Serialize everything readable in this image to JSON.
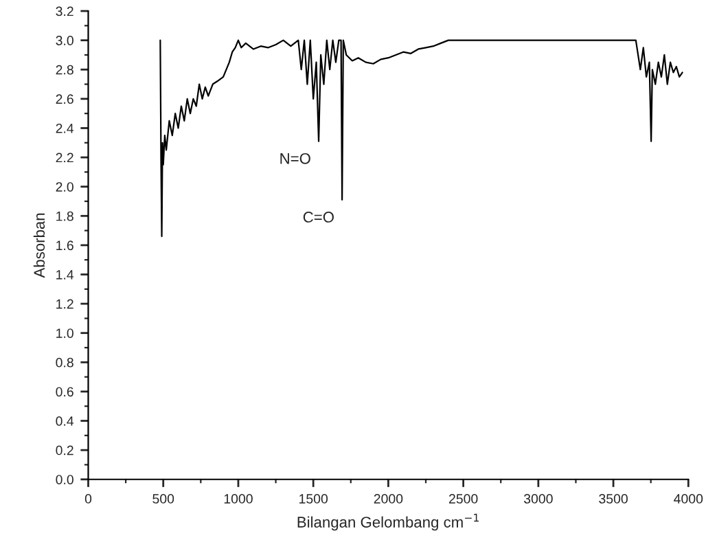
{
  "chart_data": {
    "type": "line",
    "xlabel": "Bilangan Gelombang cm$^{−1}$",
    "ylabel": "Absorban",
    "xlim": [
      0,
      4000
    ],
    "ylim": [
      0,
      3.2
    ],
    "xticks": [
      0,
      500,
      1000,
      1500,
      2000,
      2500,
      3000,
      3500,
      4000
    ],
    "yticks": [
      {
        "value": 0,
        "label": "0.0"
      },
      0.2,
      0.4,
      0.6,
      0.8,
      {
        "value": 1,
        "label": "1.0"
      },
      1.2,
      1.4,
      1.6,
      1.8,
      {
        "value": 2,
        "label": "2.0"
      },
      2.2,
      2.4,
      2.6,
      2.8,
      {
        "value": 3,
        "label": "3.0"
      },
      3.2
    ],
    "grid": false,
    "legend": false,
    "marker": "none",
    "line_style": "solid",
    "annotations": [
      {
        "text": "N=O",
        "x": 1536,
        "y": 2.31
      },
      {
        "text": "C=O",
        "x": 1692,
        "y": 1.91
      }
    ],
    "series": [
      {
        "color": "#000000",
        "x": [
          480,
          485,
          490,
          495,
          500,
          510,
          520,
          540,
          560,
          580,
          600,
          620,
          640,
          660,
          680,
          700,
          720,
          740,
          760,
          780,
          800,
          830,
          860,
          900,
          940,
          960,
          980,
          1000,
          1020,
          1050,
          1100,
          1150,
          1200,
          1250,
          1300,
          1350,
          1400,
          1420,
          1440,
          1460,
          1480,
          1500,
          1520,
          1536,
          1550,
          1570,
          1590,
          1610,
          1630,
          1650,
          1670,
          1685,
          1692,
          1700,
          1720,
          1740,
          1760,
          1800,
          1850,
          1900,
          1950,
          2000,
          2050,
          2100,
          2150,
          2200,
          2250,
          2300,
          2350,
          2400,
          2450,
          2500,
          3000,
          3500,
          3650,
          3680,
          3700,
          3720,
          3740,
          3752,
          3760,
          3780,
          3800,
          3820,
          3840,
          3860,
          3880,
          3900,
          3920,
          3940,
          3960
        ],
        "values": [
          3.0,
          2.2,
          1.66,
          2.3,
          2.15,
          2.35,
          2.25,
          2.45,
          2.35,
          2.5,
          2.4,
          2.55,
          2.45,
          2.6,
          2.5,
          2.6,
          2.55,
          2.7,
          2.6,
          2.68,
          2.62,
          2.7,
          2.72,
          2.75,
          2.85,
          2.92,
          2.95,
          3.0,
          2.95,
          2.98,
          2.94,
          2.96,
          2.95,
          2.97,
          3.0,
          2.96,
          3.0,
          2.8,
          3.0,
          2.7,
          3.0,
          2.6,
          2.85,
          2.31,
          2.9,
          2.7,
          3.0,
          2.8,
          3.0,
          2.85,
          3.0,
          3.0,
          1.91,
          3.0,
          2.9,
          2.88,
          2.86,
          2.88,
          2.85,
          2.84,
          2.87,
          2.88,
          2.9,
          2.92,
          2.91,
          2.94,
          2.95,
          2.96,
          2.98,
          3.0,
          3.0,
          3.0,
          3.0,
          3.0,
          3.0,
          2.8,
          2.95,
          2.75,
          2.85,
          2.31,
          2.8,
          2.7,
          2.85,
          2.75,
          2.9,
          2.7,
          2.85,
          2.78,
          2.82,
          2.75,
          2.78
        ]
      }
    ]
  }
}
